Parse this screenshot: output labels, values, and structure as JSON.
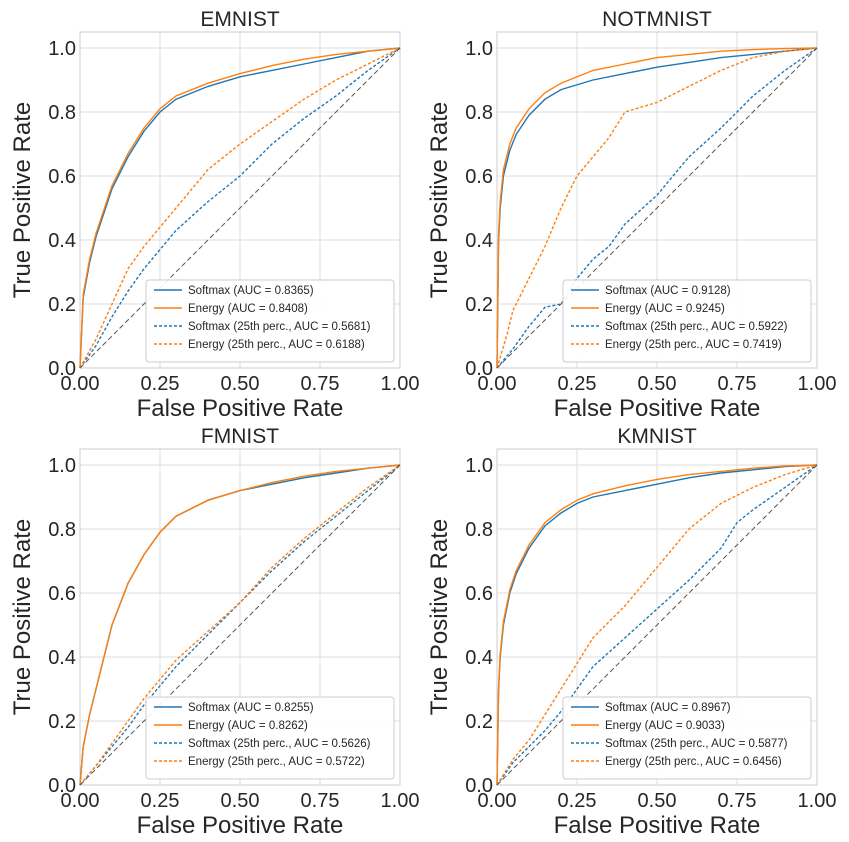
{
  "chart_data": [
    {
      "type": "line",
      "title": "EMNIST",
      "xlabel": "False Positive Rate",
      "ylabel": "True Positive Rate",
      "xlim": [
        0,
        1
      ],
      "ylim": [
        0,
        1.05
      ],
      "xticks": [
        "0.00",
        "0.25",
        "0.50",
        "0.75",
        "1.00"
      ],
      "yticks": [
        "0.0",
        "0.2",
        "0.4",
        "0.6",
        "0.8",
        "1.0"
      ],
      "grid": true,
      "legend_position": "lower-right",
      "series": [
        {
          "name": "Softmax (AUC = 0.8365)",
          "color": "#1f77b4",
          "style": "solid",
          "x": [
            0,
            0.01,
            0.03,
            0.05,
            0.08,
            0.1,
            0.15,
            0.2,
            0.25,
            0.3,
            0.4,
            0.5,
            0.6,
            0.7,
            0.8,
            0.9,
            1.0
          ],
          "y": [
            0,
            0.22,
            0.33,
            0.41,
            0.5,
            0.56,
            0.66,
            0.74,
            0.8,
            0.84,
            0.88,
            0.91,
            0.93,
            0.95,
            0.97,
            0.99,
            1.0
          ]
        },
        {
          "name": "Energy (AUC = 0.8408)",
          "color": "#ff7f0e",
          "style": "solid",
          "x": [
            0,
            0.01,
            0.03,
            0.05,
            0.08,
            0.1,
            0.15,
            0.2,
            0.25,
            0.3,
            0.4,
            0.5,
            0.6,
            0.7,
            0.8,
            0.9,
            1.0
          ],
          "y": [
            0,
            0.23,
            0.34,
            0.42,
            0.51,
            0.57,
            0.67,
            0.75,
            0.81,
            0.85,
            0.89,
            0.92,
            0.945,
            0.965,
            0.98,
            0.99,
            1.0
          ]
        },
        {
          "name": "Softmax (25th perc., AUC = 0.5681)",
          "color": "#1f77b4",
          "style": "dashed",
          "x": [
            0,
            0.05,
            0.1,
            0.15,
            0.2,
            0.25,
            0.3,
            0.4,
            0.5,
            0.6,
            0.7,
            0.8,
            0.9,
            1.0
          ],
          "y": [
            0,
            0.07,
            0.16,
            0.24,
            0.31,
            0.37,
            0.43,
            0.52,
            0.6,
            0.7,
            0.78,
            0.85,
            0.93,
            1.0
          ]
        },
        {
          "name": "Energy (25th perc., AUC = 0.6188)",
          "color": "#ff7f0e",
          "style": "dashed",
          "x": [
            0,
            0.05,
            0.1,
            0.15,
            0.2,
            0.25,
            0.3,
            0.4,
            0.5,
            0.6,
            0.7,
            0.8,
            0.9,
            1.0
          ],
          "y": [
            0,
            0.09,
            0.2,
            0.31,
            0.38,
            0.44,
            0.5,
            0.62,
            0.7,
            0.77,
            0.84,
            0.9,
            0.95,
            1.0
          ]
        },
        {
          "name": "",
          "color": "#555555",
          "style": "diagonal",
          "x": [
            0,
            1
          ],
          "y": [
            0,
            1
          ]
        }
      ]
    },
    {
      "type": "line",
      "title": "NOTMNIST",
      "xlabel": "False Positive Rate",
      "ylabel": "True Positive Rate",
      "xlim": [
        0,
        1
      ],
      "ylim": [
        0,
        1.05
      ],
      "xticks": [
        "0.00",
        "0.25",
        "0.50",
        "0.75",
        "1.00"
      ],
      "yticks": [
        "0.0",
        "0.2",
        "0.4",
        "0.6",
        "0.8",
        "1.0"
      ],
      "grid": true,
      "legend_position": "lower-right",
      "series": [
        {
          "name": "Softmax (AUC = 0.9128)",
          "color": "#1f77b4",
          "style": "solid",
          "x": [
            0,
            0.005,
            0.01,
            0.02,
            0.04,
            0.06,
            0.1,
            0.15,
            0.2,
            0.3,
            0.4,
            0.5,
            0.6,
            0.7,
            0.8,
            0.9,
            1.0
          ],
          "y": [
            0,
            0.4,
            0.5,
            0.6,
            0.68,
            0.73,
            0.79,
            0.84,
            0.87,
            0.9,
            0.92,
            0.94,
            0.955,
            0.97,
            0.98,
            0.99,
            1.0
          ]
        },
        {
          "name": "Energy (AUC = 0.9245)",
          "color": "#ff7f0e",
          "style": "solid",
          "x": [
            0,
            0.005,
            0.01,
            0.02,
            0.04,
            0.06,
            0.1,
            0.15,
            0.2,
            0.3,
            0.4,
            0.5,
            0.6,
            0.7,
            0.8,
            0.9,
            1.0
          ],
          "y": [
            0,
            0.42,
            0.52,
            0.62,
            0.7,
            0.75,
            0.81,
            0.86,
            0.89,
            0.93,
            0.95,
            0.97,
            0.98,
            0.99,
            0.995,
            0.998,
            1.0
          ]
        },
        {
          "name": "Softmax (25th perc., AUC = 0.5922)",
          "color": "#1f77b4",
          "style": "dashed",
          "x": [
            0,
            0.05,
            0.1,
            0.15,
            0.2,
            0.25,
            0.3,
            0.35,
            0.4,
            0.5,
            0.6,
            0.7,
            0.8,
            0.9,
            1.0
          ],
          "y": [
            0,
            0.06,
            0.13,
            0.19,
            0.2,
            0.28,
            0.34,
            0.38,
            0.45,
            0.54,
            0.66,
            0.75,
            0.85,
            0.93,
            1.0
          ]
        },
        {
          "name": "Energy (25th perc., AUC = 0.7419)",
          "color": "#ff7f0e",
          "style": "dashed",
          "x": [
            0,
            0.03,
            0.05,
            0.1,
            0.15,
            0.2,
            0.25,
            0.3,
            0.35,
            0.4,
            0.5,
            0.6,
            0.7,
            0.8,
            0.9,
            1.0
          ],
          "y": [
            0,
            0.1,
            0.18,
            0.28,
            0.38,
            0.5,
            0.6,
            0.66,
            0.72,
            0.8,
            0.83,
            0.88,
            0.93,
            0.97,
            0.99,
            1.0
          ]
        },
        {
          "name": "",
          "color": "#555555",
          "style": "diagonal",
          "x": [
            0,
            1
          ],
          "y": [
            0,
            1
          ]
        }
      ]
    },
    {
      "type": "line",
      "title": "FMNIST",
      "xlabel": "False Positive Rate",
      "ylabel": "True Positive Rate",
      "xlim": [
        0,
        1
      ],
      "ylim": [
        0,
        1.05
      ],
      "xticks": [
        "0.00",
        "0.25",
        "0.50",
        "0.75",
        "1.00"
      ],
      "yticks": [
        "0.0",
        "0.2",
        "0.4",
        "0.6",
        "0.8",
        "1.0"
      ],
      "grid": true,
      "legend_position": "lower-right",
      "series": [
        {
          "name": "Softmax (AUC = 0.8255)",
          "color": "#1f77b4",
          "style": "solid",
          "x": [
            0,
            0.01,
            0.03,
            0.05,
            0.08,
            0.1,
            0.15,
            0.2,
            0.25,
            0.3,
            0.4,
            0.5,
            0.6,
            0.7,
            0.8,
            0.9,
            1.0
          ],
          "y": [
            0,
            0.12,
            0.22,
            0.3,
            0.42,
            0.5,
            0.63,
            0.72,
            0.79,
            0.84,
            0.89,
            0.92,
            0.94,
            0.96,
            0.975,
            0.99,
            1.0
          ]
        },
        {
          "name": "Energy (AUC = 0.8262)",
          "color": "#ff7f0e",
          "style": "solid",
          "x": [
            0,
            0.01,
            0.03,
            0.05,
            0.08,
            0.1,
            0.15,
            0.2,
            0.25,
            0.3,
            0.4,
            0.5,
            0.6,
            0.7,
            0.8,
            0.9,
            1.0
          ],
          "y": [
            0,
            0.12,
            0.22,
            0.3,
            0.42,
            0.5,
            0.63,
            0.72,
            0.79,
            0.84,
            0.89,
            0.92,
            0.945,
            0.965,
            0.98,
            0.99,
            1.0
          ]
        },
        {
          "name": "Softmax (25th perc., AUC = 0.5626)",
          "color": "#1f77b4",
          "style": "dashed",
          "x": [
            0,
            0.05,
            0.1,
            0.15,
            0.2,
            0.25,
            0.3,
            0.4,
            0.5,
            0.6,
            0.7,
            0.8,
            0.9,
            1.0
          ],
          "y": [
            0,
            0.06,
            0.12,
            0.18,
            0.25,
            0.31,
            0.37,
            0.47,
            0.57,
            0.67,
            0.76,
            0.84,
            0.92,
            1.0
          ]
        },
        {
          "name": "Energy (25th perc., AUC = 0.5722)",
          "color": "#ff7f0e",
          "style": "dashed",
          "x": [
            0,
            0.05,
            0.1,
            0.15,
            0.2,
            0.25,
            0.3,
            0.4,
            0.5,
            0.6,
            0.7,
            0.8,
            0.9,
            1.0
          ],
          "y": [
            0,
            0.06,
            0.13,
            0.2,
            0.27,
            0.33,
            0.39,
            0.48,
            0.57,
            0.68,
            0.77,
            0.85,
            0.93,
            1.0
          ]
        },
        {
          "name": "",
          "color": "#555555",
          "style": "diagonal",
          "x": [
            0,
            1
          ],
          "y": [
            0,
            1
          ]
        }
      ]
    },
    {
      "type": "line",
      "title": "KMNIST",
      "xlabel": "False Positive Rate",
      "ylabel": "True Positive Rate",
      "xlim": [
        0,
        1
      ],
      "ylim": [
        0,
        1.05
      ],
      "xticks": [
        "0.00",
        "0.25",
        "0.50",
        "0.75",
        "1.00"
      ],
      "yticks": [
        "0.0",
        "0.2",
        "0.4",
        "0.6",
        "0.8",
        "1.0"
      ],
      "grid": true,
      "legend_position": "lower-right",
      "series": [
        {
          "name": "Softmax (AUC = 0.8967)",
          "color": "#1f77b4",
          "style": "solid",
          "x": [
            0,
            0.005,
            0.01,
            0.02,
            0.04,
            0.06,
            0.1,
            0.15,
            0.2,
            0.25,
            0.3,
            0.4,
            0.5,
            0.6,
            0.7,
            0.8,
            0.9,
            1.0
          ],
          "y": [
            0,
            0.3,
            0.4,
            0.5,
            0.6,
            0.66,
            0.74,
            0.81,
            0.85,
            0.88,
            0.9,
            0.92,
            0.94,
            0.96,
            0.975,
            0.985,
            0.995,
            1.0
          ]
        },
        {
          "name": "Energy (AUC = 0.9033)",
          "color": "#ff7f0e",
          "style": "solid",
          "x": [
            0,
            0.005,
            0.01,
            0.02,
            0.04,
            0.06,
            0.1,
            0.15,
            0.2,
            0.25,
            0.3,
            0.4,
            0.5,
            0.6,
            0.7,
            0.8,
            0.9,
            1.0
          ],
          "y": [
            0,
            0.31,
            0.41,
            0.51,
            0.61,
            0.67,
            0.75,
            0.82,
            0.86,
            0.89,
            0.91,
            0.935,
            0.955,
            0.97,
            0.98,
            0.99,
            0.997,
            1.0
          ]
        },
        {
          "name": "Softmax (25th perc., AUC = 0.5877)",
          "color": "#1f77b4",
          "style": "dashed",
          "x": [
            0,
            0.05,
            0.1,
            0.15,
            0.2,
            0.25,
            0.3,
            0.4,
            0.5,
            0.6,
            0.7,
            0.75,
            0.8,
            0.9,
            1.0
          ],
          "y": [
            0,
            0.07,
            0.12,
            0.17,
            0.23,
            0.3,
            0.37,
            0.46,
            0.55,
            0.64,
            0.74,
            0.82,
            0.86,
            0.93,
            1.0
          ]
        },
        {
          "name": "Energy (25th perc., AUC = 0.6456)",
          "color": "#ff7f0e",
          "style": "dashed",
          "x": [
            0,
            0.05,
            0.1,
            0.15,
            0.2,
            0.25,
            0.3,
            0.4,
            0.5,
            0.6,
            0.7,
            0.8,
            0.9,
            1.0
          ],
          "y": [
            0,
            0.08,
            0.14,
            0.22,
            0.3,
            0.38,
            0.46,
            0.56,
            0.68,
            0.8,
            0.88,
            0.93,
            0.97,
            1.0
          ]
        },
        {
          "name": "",
          "color": "#555555",
          "style": "diagonal",
          "x": [
            0,
            1
          ],
          "y": [
            0,
            1
          ]
        }
      ]
    }
  ]
}
